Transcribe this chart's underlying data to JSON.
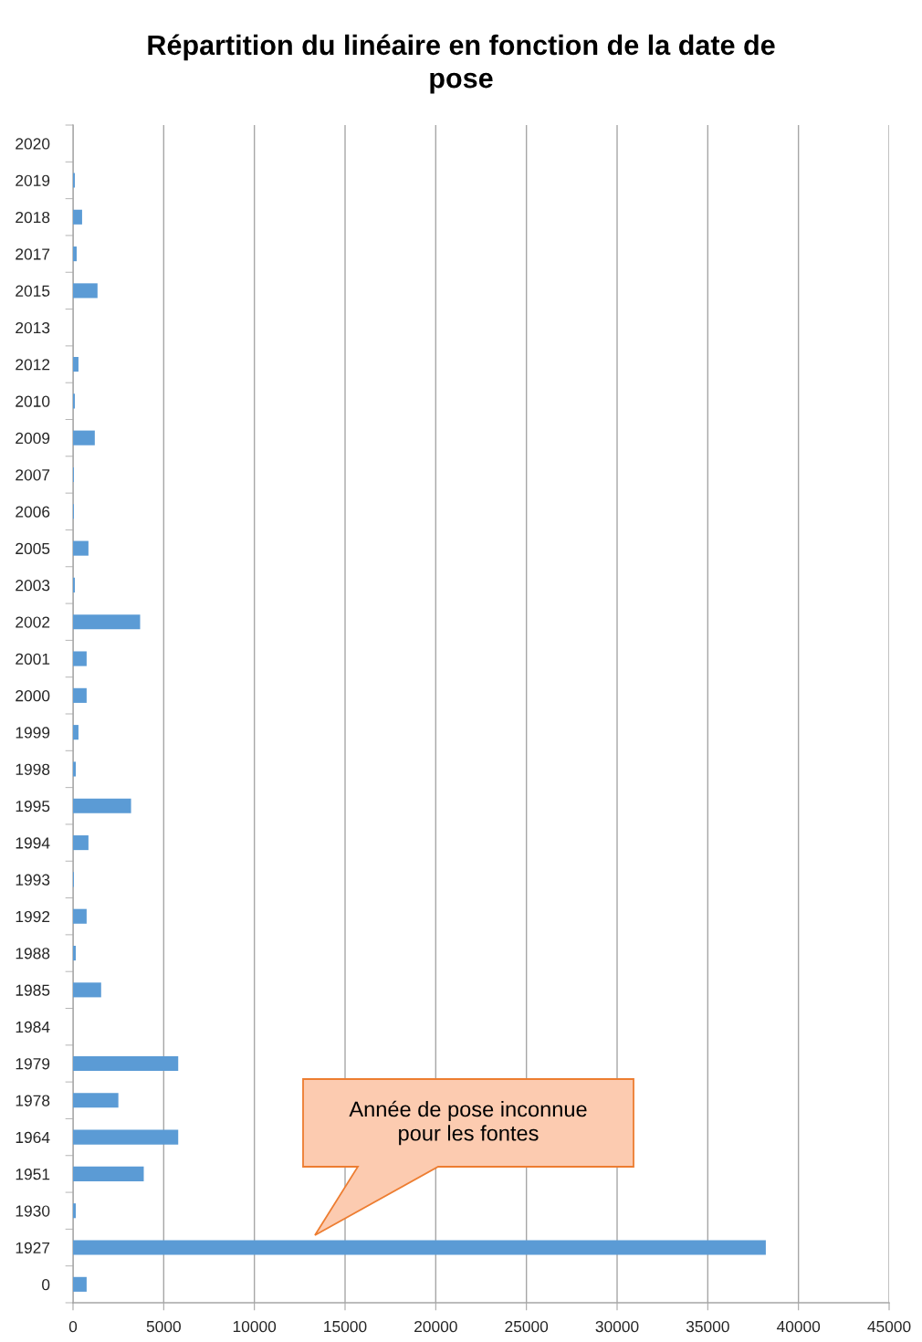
{
  "chart_data": {
    "type": "bar",
    "orientation": "horizontal",
    "title": "Répartition du linéaire en fonction de la date de pose",
    "categories": [
      "2020",
      "2019",
      "2018",
      "2017",
      "2015",
      "2013",
      "2012",
      "2010",
      "2009",
      "2007",
      "2006",
      "2005",
      "2003",
      "2002",
      "2001",
      "2000",
      "1999",
      "1998",
      "1995",
      "1994",
      "1993",
      "1992",
      "1988",
      "1985",
      "1984",
      "1979",
      "1978",
      "1964",
      "1951",
      "1930",
      "1927",
      "0"
    ],
    "values": [
      0,
      100,
      500,
      200,
      1350,
      0,
      300,
      100,
      1200,
      50,
      50,
      850,
      100,
      3700,
      750,
      750,
      300,
      150,
      3200,
      850,
      50,
      750,
      150,
      1550,
      0,
      5800,
      2500,
      5800,
      3900,
      150,
      38200,
      750
    ],
    "color": "#5b9bd5",
    "xlim": [
      0,
      45000
    ],
    "xticks": [
      0,
      5000,
      10000,
      15000,
      20000,
      25000,
      30000,
      35000,
      40000,
      45000
    ],
    "grid": "x",
    "annotations": [
      "Année de pose inconnue pour les fontes"
    ]
  }
}
